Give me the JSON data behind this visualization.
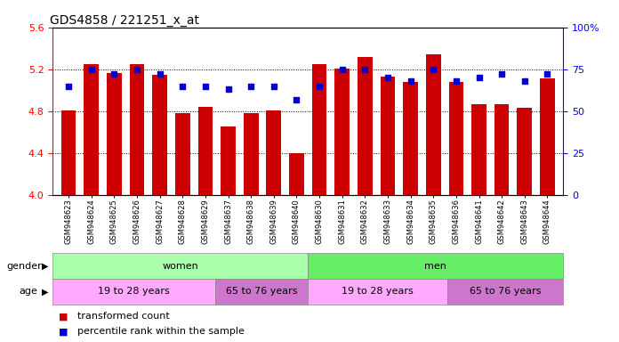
{
  "title": "GDS4858 / 221251_x_at",
  "samples": [
    "GSM948623",
    "GSM948624",
    "GSM948625",
    "GSM948626",
    "GSM948627",
    "GSM948628",
    "GSM948629",
    "GSM948637",
    "GSM948638",
    "GSM948639",
    "GSM948640",
    "GSM948630",
    "GSM948631",
    "GSM948632",
    "GSM948633",
    "GSM948634",
    "GSM948635",
    "GSM948636",
    "GSM948641",
    "GSM948642",
    "GSM948643",
    "GSM948644"
  ],
  "bar_values": [
    4.81,
    5.25,
    5.16,
    5.25,
    5.15,
    4.78,
    4.84,
    4.65,
    4.78,
    4.81,
    4.4,
    5.25,
    5.21,
    5.32,
    5.13,
    5.08,
    5.34,
    5.08,
    4.87,
    4.87,
    4.83,
    5.11
  ],
  "dot_values": [
    65,
    75,
    72,
    75,
    72,
    65,
    65,
    63,
    65,
    65,
    57,
    65,
    75,
    75,
    70,
    68,
    75,
    68,
    70,
    72,
    68,
    72
  ],
  "ylim_left": [
    4.0,
    5.6
  ],
  "ylim_right": [
    0,
    100
  ],
  "yticks_left": [
    4.0,
    4.4,
    4.8,
    5.2,
    5.6
  ],
  "yticks_right": [
    0,
    25,
    50,
    75,
    100
  ],
  "bar_color": "#cc0000",
  "dot_color": "#0000cc",
  "background_color": "#ffffff",
  "plot_bg_color": "#ffffff",
  "title_fontsize": 10,
  "gender_groups": [
    {
      "label": "women",
      "start": 0,
      "end": 11,
      "color": "#aaffaa"
    },
    {
      "label": "men",
      "start": 11,
      "end": 22,
      "color": "#66ee66"
    }
  ],
  "age_groups": [
    {
      "label": "19 to 28 years",
      "start": 0,
      "end": 7,
      "color": "#ffaaff"
    },
    {
      "label": "65 to 76 years",
      "start": 7,
      "end": 11,
      "color": "#cc77cc"
    },
    {
      "label": "19 to 28 years",
      "start": 11,
      "end": 17,
      "color": "#ffaaff"
    },
    {
      "label": "65 to 76 years",
      "start": 17,
      "end": 22,
      "color": "#cc77cc"
    }
  ],
  "legend_items": [
    {
      "label": "transformed count",
      "color": "#cc0000"
    },
    {
      "label": "percentile rank within the sample",
      "color": "#0000cc"
    }
  ]
}
